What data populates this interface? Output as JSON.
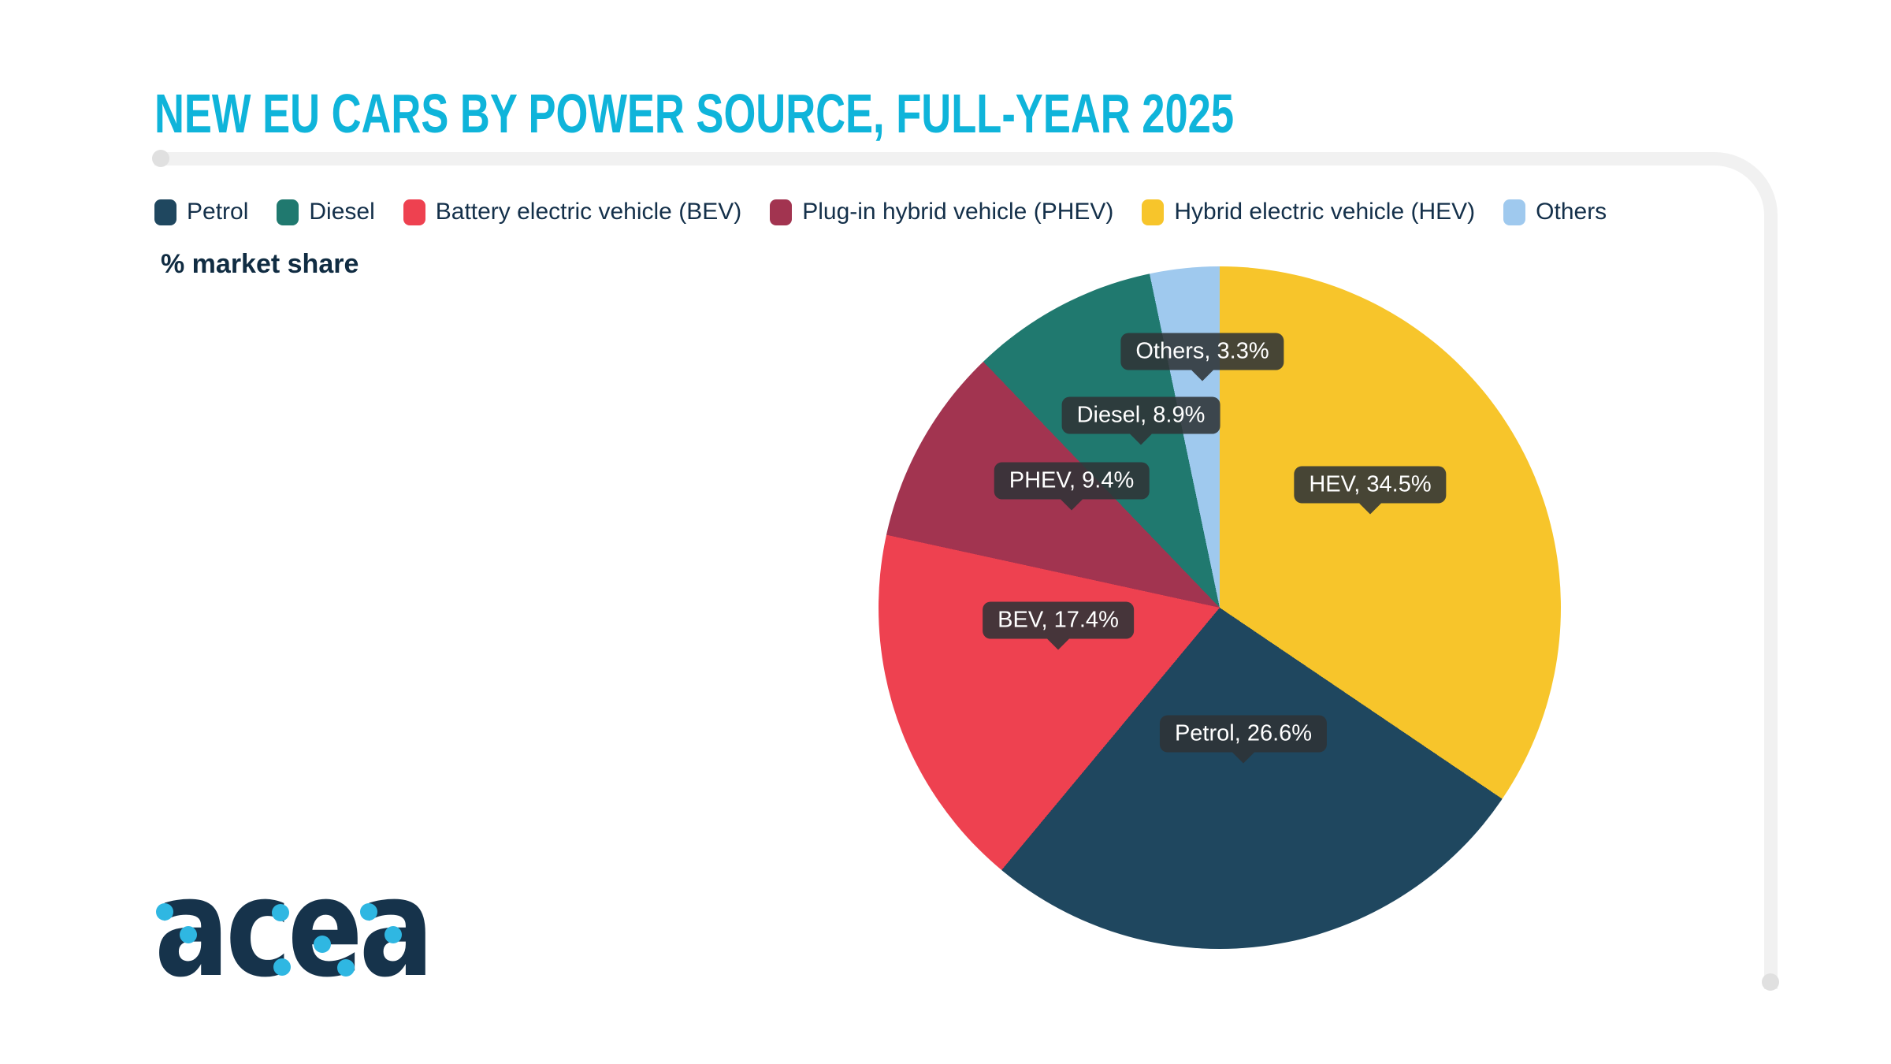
{
  "header": {
    "title": "NEW EU CARS BY POWER SOURCE, FULL-YEAR 2025",
    "title_color": "#0FB4DA"
  },
  "unit_note": "% market share",
  "legend": {
    "items": [
      {
        "label": "Petrol",
        "color": "#1F475F"
      },
      {
        "label": "Diesel",
        "color": "#20796F"
      },
      {
        "label": "Battery electric vehicle (BEV)",
        "color": "#EE4150"
      },
      {
        "label": "Plug-in hybrid vehicle (PHEV)",
        "color": "#A23450"
      },
      {
        "label": "Hybrid electric vehicle (HEV)",
        "color": "#F7C52B"
      },
      {
        "label": "Others",
        "color": "#9FC9EE"
      }
    ]
  },
  "chart_data": {
    "type": "pie",
    "title": "NEW EU CARS BY POWER SOURCE, FULL-YEAR 2025",
    "value_unit": "% market share",
    "start_angle_deg": 0,
    "direction": "clockwise",
    "slices": [
      {
        "name": "Hybrid electric vehicle (HEV)",
        "short": "HEV",
        "value": 34.5,
        "color": "#F7C52B",
        "tooltip": "HEV, 34.5%"
      },
      {
        "name": "Petrol",
        "short": "Petrol",
        "value": 26.6,
        "color": "#1F475F",
        "tooltip": "Petrol, 26.6%"
      },
      {
        "name": "Battery electric vehicle (BEV)",
        "short": "BEV",
        "value": 17.4,
        "color": "#EE4150",
        "tooltip": "BEV, 17.4%"
      },
      {
        "name": "Plug-in hybrid vehicle (PHEV)",
        "short": "PHEV",
        "value": 9.4,
        "color": "#A23450",
        "tooltip": "PHEV, 9.4%"
      },
      {
        "name": "Diesel",
        "short": "Diesel",
        "value": 8.9,
        "color": "#20796F",
        "tooltip": "Diesel, 8.9%"
      },
      {
        "name": "Others",
        "short": "Others",
        "value": 3.3,
        "color": "#9FC9EE",
        "tooltip": "Others, 3.3%"
      }
    ]
  },
  "logo": {
    "text": "acea",
    "letter_color": "#16334B",
    "dot_color": "#2FB7E2"
  }
}
